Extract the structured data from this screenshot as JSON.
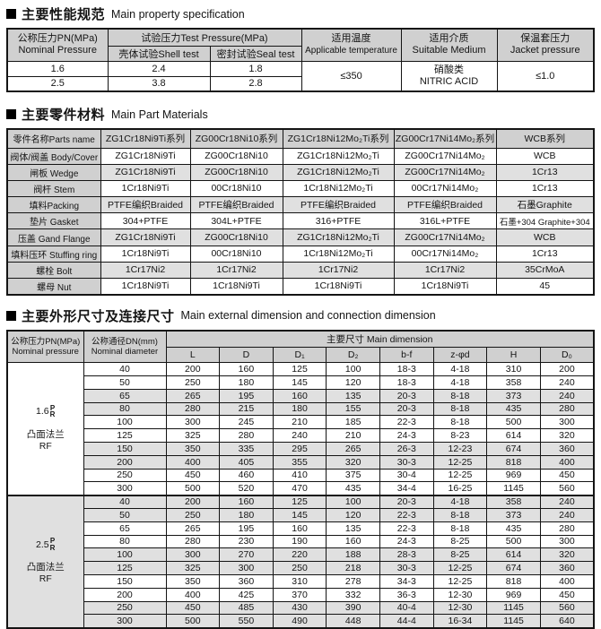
{
  "colors": {
    "header_bg": "#d0d0d0",
    "row_alt_bg": "#e0e0e0",
    "border": "#141414"
  },
  "sections": {
    "properties": {
      "title_zh": "主要性能规范",
      "title_en": "Main property specification"
    },
    "materials": {
      "title_zh": "主要零件材料",
      "title_en": "Main Part Materials"
    },
    "dimensions": {
      "title_zh": "主要外形尺寸及连接尺寸",
      "title_en": "Main external dimension and connection dimension"
    }
  },
  "property_table": {
    "headers": {
      "nominal_pressure_zh": "公称压力PN(MPa)",
      "nominal_pressure_en": "Nominal Pressure",
      "test_pressure": "试验压力Test Pressure(MPa)",
      "shell_test": "壳体试验Shell test",
      "seal_test": "密封试验Seal test",
      "temperature_zh": "适用温度",
      "temperature_en": "Applicable temperature",
      "medium_zh": "适用介质",
      "medium_en": "Suitable Medium",
      "jacket_zh": "保温套压力",
      "jacket_en": "Jacket pressure"
    },
    "rows": [
      {
        "pn": "1.6",
        "shell": "2.4",
        "seal": "1.8"
      },
      {
        "pn": "2.5",
        "shell": "3.8",
        "seal": "2.8"
      }
    ],
    "temperature_value": "≤350",
    "medium_value_zh": "硝酸类",
    "medium_value_en": "NITRIC ACID",
    "jacket_value": "≤1.0"
  },
  "materials_table": {
    "header": [
      "零件名称Parts name",
      "ZG1Cr18Ni9Ti系列",
      "ZG00Cr18Ni10系列",
      "ZG1Cr18Ni12Mo₂Ti系列",
      "ZG00Cr17Ni14Mo₂系列",
      "WCB系列"
    ],
    "rows": [
      [
        "阀体/阀盖 Body/Cover",
        "ZG1Cr18Ni9Ti",
        "ZG00Cr18Ni10",
        "ZG1Cr18Ni12Mo₂Ti",
        "ZG00Cr17Ni14Mo₂",
        "WCB"
      ],
      [
        "闸板 Wedge",
        "ZG1Cr18Ni9Ti",
        "ZG00Cr18Ni10",
        "ZG1Cr18Ni12Mo₂Ti",
        "ZG00Cr17Ni14Mo₂",
        "1Cr13"
      ],
      [
        "阀杆 Stem",
        "1Cr18Ni9Ti",
        "00Cr18Ni10",
        "1Cr18Ni12Mo₂Ti",
        "00Cr17Ni14Mo₂",
        "1Cr13"
      ],
      [
        "填料Packing",
        "PTFE编织Braided",
        "PTFE编织Braided",
        "PTFE编织Braided",
        "PTFE编织Braided",
        "石墨Graphite"
      ],
      [
        "垫片 Gasket",
        "304+PTFE",
        "304L+PTFE",
        "316+PTFE",
        "316L+PTFE",
        "石墨+304 Graphite+304"
      ],
      [
        "压盖 Gand Flange",
        "ZG1Cr18Ni9Ti",
        "ZG00Cr18Ni10",
        "ZG1Cr18Ni12Mo₂Ti",
        "ZG00Cr17Ni14Mo₂",
        "WCB"
      ],
      [
        "填料压环 Stuffing ring",
        "1Cr18Ni9Ti",
        "00Cr18Ni10",
        "1Cr18Ni12Mo₂Ti",
        "00Cr17Ni14Mo₂",
        "1Cr13"
      ],
      [
        "螺栓 Bolt",
        "1Cr17Ni2",
        "1Cr17Ni2",
        "1Cr17Ni2",
        "1Cr17Ni2",
        "35CrMoA"
      ],
      [
        "螺母 Nut",
        "1Cr18Ni9Ti",
        "1Cr18Ni9Ti",
        "1Cr18Ni9Ti",
        "1Cr18Ni9Ti",
        "45"
      ]
    ]
  },
  "dimension_table": {
    "headers": {
      "pressure_zh": "公称压力PN(MPa)",
      "pressure_en": "Nominal pressure",
      "diameter_zh": "公称通径DN(mm)",
      "diameter_en": "Nominal diameter",
      "main_dim": "主要尺寸 Main dimension",
      "dim_cols": [
        "L",
        "D",
        "D₁",
        "D₂",
        "b-f",
        "z-φd",
        "H",
        "D₀"
      ]
    },
    "groups": [
      {
        "pressure_value": "1.6",
        "pr_top": "P",
        "pr_bottom": "R",
        "flange_zh": "凸面法兰",
        "flange_en": "RF",
        "rows": [
          [
            "40",
            "200",
            "160",
            "125",
            "100",
            "18-3",
            "4-18",
            "310",
            "200"
          ],
          [
            "50",
            "250",
            "180",
            "145",
            "120",
            "18-3",
            "4-18",
            "358",
            "240"
          ],
          [
            "65",
            "265",
            "195",
            "160",
            "135",
            "20-3",
            "8-18",
            "373",
            "240"
          ],
          [
            "80",
            "280",
            "215",
            "180",
            "155",
            "20-3",
            "8-18",
            "435",
            "280"
          ],
          [
            "100",
            "300",
            "245",
            "210",
            "185",
            "22-3",
            "8-18",
            "500",
            "300"
          ],
          [
            "125",
            "325",
            "280",
            "240",
            "210",
            "24-3",
            "8-23",
            "614",
            "320"
          ],
          [
            "150",
            "350",
            "335",
            "295",
            "265",
            "26-3",
            "12-23",
            "674",
            "360"
          ],
          [
            "200",
            "400",
            "405",
            "355",
            "320",
            "30-3",
            "12-25",
            "818",
            "400"
          ],
          [
            "250",
            "450",
            "460",
            "410",
            "375",
            "30-4",
            "12-25",
            "969",
            "450"
          ],
          [
            "300",
            "500",
            "520",
            "470",
            "435",
            "34-4",
            "16-25",
            "1145",
            "560"
          ]
        ]
      },
      {
        "pressure_value": "2.5",
        "pr_top": "P",
        "pr_bottom": "R",
        "flange_zh": "凸面法兰",
        "flange_en": "RF",
        "rows": [
          [
            "40",
            "200",
            "160",
            "125",
            "100",
            "20-3",
            "4-18",
            "358",
            "240"
          ],
          [
            "50",
            "250",
            "180",
            "145",
            "120",
            "22-3",
            "8-18",
            "373",
            "240"
          ],
          [
            "65",
            "265",
            "195",
            "160",
            "135",
            "22-3",
            "8-18",
            "435",
            "280"
          ],
          [
            "80",
            "280",
            "230",
            "190",
            "160",
            "24-3",
            "8-25",
            "500",
            "300"
          ],
          [
            "100",
            "300",
            "270",
            "220",
            "188",
            "28-3",
            "8-25",
            "614",
            "320"
          ],
          [
            "125",
            "325",
            "300",
            "250",
            "218",
            "30-3",
            "12-25",
            "674",
            "360"
          ],
          [
            "150",
            "350",
            "360",
            "310",
            "278",
            "34-3",
            "12-25",
            "818",
            "400"
          ],
          [
            "200",
            "400",
            "425",
            "370",
            "332",
            "36-3",
            "12-30",
            "969",
            "450"
          ],
          [
            "250",
            "450",
            "485",
            "430",
            "390",
            "40-4",
            "12-30",
            "1145",
            "560"
          ],
          [
            "300",
            "500",
            "550",
            "490",
            "448",
            "44-4",
            "16-34",
            "1145",
            "640"
          ]
        ]
      }
    ]
  }
}
